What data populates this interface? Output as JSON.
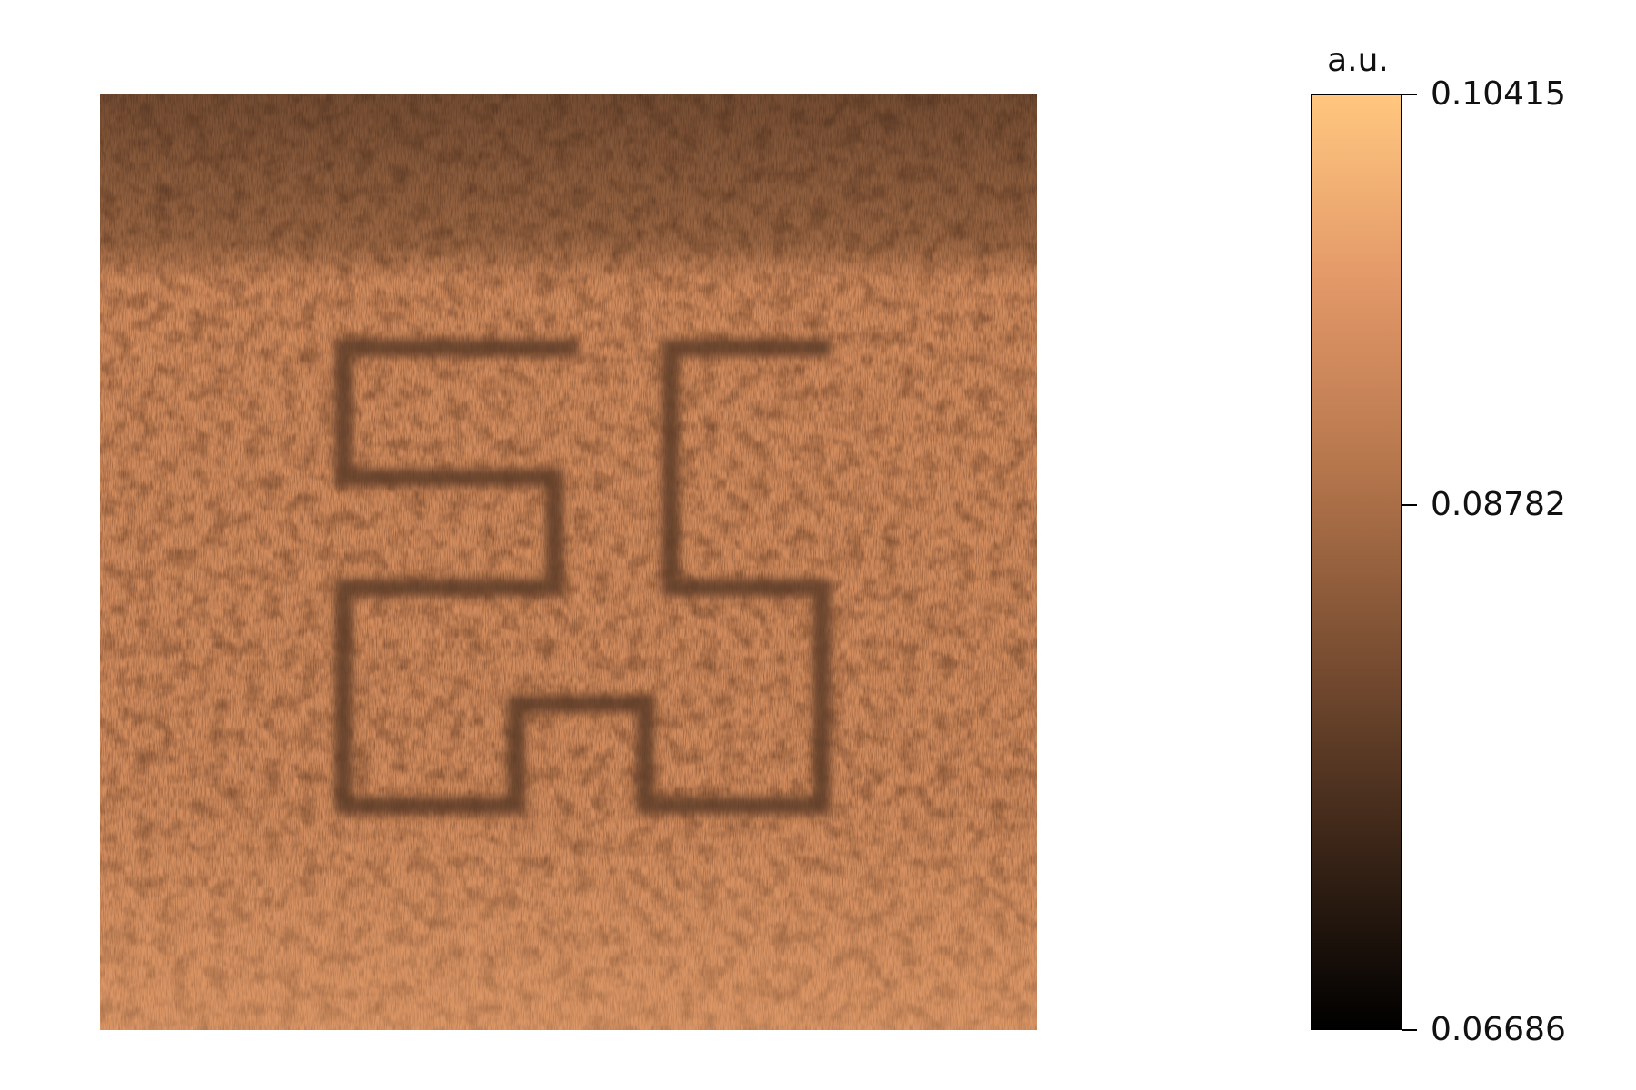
{
  "chart_data": {
    "type": "heatmap",
    "title": "",
    "xlabel": "",
    "ylabel": "",
    "axes_visible": false,
    "colormap": "copper",
    "colormap_stops": [
      "#000000",
      "#3c2618",
      "#7a4e32",
      "#b5764c",
      "#e39868",
      "#ffc77f"
    ],
    "colorbar": {
      "label": "a.u.",
      "min": 0.06686,
      "max": 0.10415,
      "ticks": [
        {
          "value": 0.10415,
          "label": "0.10415"
        },
        {
          "value": 0.08782,
          "label": "0.08782"
        },
        {
          "value": 0.06686,
          "label": "0.06686"
        }
      ],
      "placement": "right"
    },
    "image": {
      "grid_x": [
        0,
        1
      ],
      "grid_y": [
        0,
        1
      ],
      "background_mean": 0.094,
      "top_band_mean": 0.089,
      "feature_value": 0.078,
      "feature_description_shape": "pair of rectilinear meander patterns"
    }
  }
}
